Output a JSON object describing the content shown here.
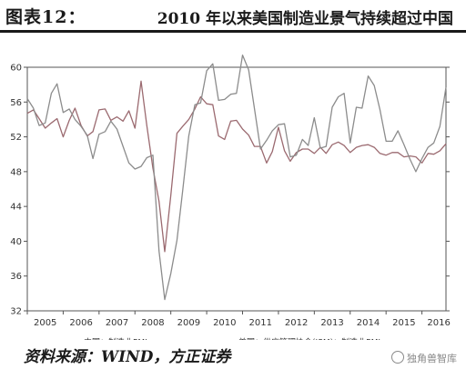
{
  "header": {
    "figure_label": "图表12：",
    "title": "2010 年以来美国制造业景气持续超过中国"
  },
  "source_note": "资料来源：WIND，方正证券",
  "watermark": "独角兽智库",
  "chart_data": {
    "type": "line",
    "title": "",
    "xlabel": "",
    "ylabel": "",
    "xlim": [
      2005,
      2016.67
    ],
    "ylim": [
      32,
      60
    ],
    "yticks": [
      32,
      36,
      40,
      44,
      48,
      52,
      56,
      60
    ],
    "xticks": [
      "2005",
      "2006",
      "2007",
      "2008",
      "2009",
      "2010",
      "2011",
      "2012",
      "2013",
      "2014",
      "2015",
      "2016"
    ],
    "grid": false,
    "legend_position": "bottom",
    "series": [
      {
        "name": "中国：制造业PMI",
        "color": "#9b6a70",
        "points": [
          [
            2005.0,
            54.7
          ],
          [
            2005.17,
            55.1
          ],
          [
            2005.33,
            54.1
          ],
          [
            2005.5,
            53.0
          ],
          [
            2005.67,
            53.6
          ],
          [
            2005.83,
            54.1
          ],
          [
            2006.0,
            52.0
          ],
          [
            2006.17,
            53.9
          ],
          [
            2006.33,
            55.3
          ],
          [
            2006.5,
            53.3
          ],
          [
            2006.67,
            52.1
          ],
          [
            2006.83,
            52.6
          ],
          [
            2007.0,
            55.1
          ],
          [
            2007.17,
            55.2
          ],
          [
            2007.33,
            53.9
          ],
          [
            2007.5,
            54.3
          ],
          [
            2007.67,
            53.8
          ],
          [
            2007.83,
            55.0
          ],
          [
            2008.0,
            53.0
          ],
          [
            2008.17,
            58.4
          ],
          [
            2008.33,
            53.3
          ],
          [
            2008.5,
            48.4
          ],
          [
            2008.67,
            44.6
          ],
          [
            2008.83,
            38.8
          ],
          [
            2009.0,
            45.3
          ],
          [
            2009.17,
            52.4
          ],
          [
            2009.33,
            53.2
          ],
          [
            2009.5,
            54.0
          ],
          [
            2009.67,
            55.2
          ],
          [
            2009.83,
            56.6
          ],
          [
            2010.0,
            55.8
          ],
          [
            2010.17,
            55.7
          ],
          [
            2010.33,
            52.1
          ],
          [
            2010.5,
            51.7
          ],
          [
            2010.67,
            53.8
          ],
          [
            2010.83,
            53.9
          ],
          [
            2011.0,
            52.9
          ],
          [
            2011.17,
            52.2
          ],
          [
            2011.33,
            50.9
          ],
          [
            2011.5,
            50.9
          ],
          [
            2011.67,
            49.0
          ],
          [
            2011.83,
            50.3
          ],
          [
            2012.0,
            53.1
          ],
          [
            2012.17,
            50.4
          ],
          [
            2012.33,
            49.2
          ],
          [
            2012.5,
            50.2
          ],
          [
            2012.67,
            50.6
          ],
          [
            2012.83,
            50.6
          ],
          [
            2013.0,
            50.1
          ],
          [
            2013.17,
            50.8
          ],
          [
            2013.33,
            50.1
          ],
          [
            2013.5,
            51.1
          ],
          [
            2013.67,
            51.4
          ],
          [
            2013.83,
            51.0
          ],
          [
            2014.0,
            50.2
          ],
          [
            2014.17,
            50.8
          ],
          [
            2014.33,
            51.0
          ],
          [
            2014.5,
            51.1
          ],
          [
            2014.67,
            50.8
          ],
          [
            2014.83,
            50.1
          ],
          [
            2015.0,
            49.9
          ],
          [
            2015.17,
            50.2
          ],
          [
            2015.33,
            50.2
          ],
          [
            2015.5,
            49.7
          ],
          [
            2015.67,
            49.8
          ],
          [
            2015.83,
            49.7
          ],
          [
            2016.0,
            49.0
          ],
          [
            2016.17,
            50.1
          ],
          [
            2016.33,
            50.0
          ],
          [
            2016.5,
            50.4
          ],
          [
            2016.67,
            51.2
          ]
        ]
      },
      {
        "name": "美国：供应管理协会(ISM)：制造业PMI",
        "color": "#8c8c8c",
        "points": [
          [
            2005.0,
            56.4
          ],
          [
            2005.17,
            55.3
          ],
          [
            2005.33,
            53.3
          ],
          [
            2005.5,
            53.6
          ],
          [
            2005.67,
            57.0
          ],
          [
            2005.83,
            58.1
          ],
          [
            2006.0,
            54.8
          ],
          [
            2006.17,
            55.2
          ],
          [
            2006.33,
            54.0
          ],
          [
            2006.5,
            53.2
          ],
          [
            2006.67,
            52.2
          ],
          [
            2006.83,
            49.5
          ],
          [
            2007.0,
            52.3
          ],
          [
            2007.17,
            52.6
          ],
          [
            2007.33,
            53.8
          ],
          [
            2007.5,
            52.9
          ],
          [
            2007.67,
            50.9
          ],
          [
            2007.83,
            49.0
          ],
          [
            2008.0,
            48.3
          ],
          [
            2008.17,
            48.6
          ],
          [
            2008.33,
            49.6
          ],
          [
            2008.5,
            49.9
          ],
          [
            2008.67,
            38.9
          ],
          [
            2008.83,
            33.3
          ],
          [
            2009.0,
            36.3
          ],
          [
            2009.17,
            40.1
          ],
          [
            2009.33,
            45.8
          ],
          [
            2009.5,
            52.1
          ],
          [
            2009.67,
            55.7
          ],
          [
            2009.83,
            55.9
          ],
          [
            2010.0,
            59.6
          ],
          [
            2010.17,
            60.4
          ],
          [
            2010.33,
            56.2
          ],
          [
            2010.5,
            56.3
          ],
          [
            2010.67,
            56.9
          ],
          [
            2010.83,
            57.0
          ],
          [
            2011.0,
            61.4
          ],
          [
            2011.17,
            59.7
          ],
          [
            2011.33,
            55.3
          ],
          [
            2011.5,
            50.6
          ],
          [
            2011.67,
            51.6
          ],
          [
            2011.83,
            52.7
          ],
          [
            2012.0,
            53.4
          ],
          [
            2012.17,
            53.5
          ],
          [
            2012.33,
            49.7
          ],
          [
            2012.5,
            49.9
          ],
          [
            2012.67,
            51.7
          ],
          [
            2012.83,
            51.0
          ],
          [
            2013.0,
            54.2
          ],
          [
            2013.17,
            50.7
          ],
          [
            2013.33,
            50.9
          ],
          [
            2013.5,
            55.4
          ],
          [
            2013.67,
            56.6
          ],
          [
            2013.83,
            57.0
          ],
          [
            2014.0,
            51.3
          ],
          [
            2014.17,
            55.4
          ],
          [
            2014.33,
            55.3
          ],
          [
            2014.5,
            59.0
          ],
          [
            2014.67,
            57.9
          ],
          [
            2014.83,
            55.1
          ],
          [
            2015.0,
            51.5
          ],
          [
            2015.17,
            51.5
          ],
          [
            2015.33,
            52.7
          ],
          [
            2015.5,
            51.1
          ],
          [
            2015.67,
            49.4
          ],
          [
            2015.83,
            48.0
          ],
          [
            2016.0,
            49.5
          ],
          [
            2016.17,
            50.8
          ],
          [
            2016.33,
            51.3
          ],
          [
            2016.5,
            53.2
          ],
          [
            2016.67,
            57.7
          ]
        ]
      }
    ]
  }
}
